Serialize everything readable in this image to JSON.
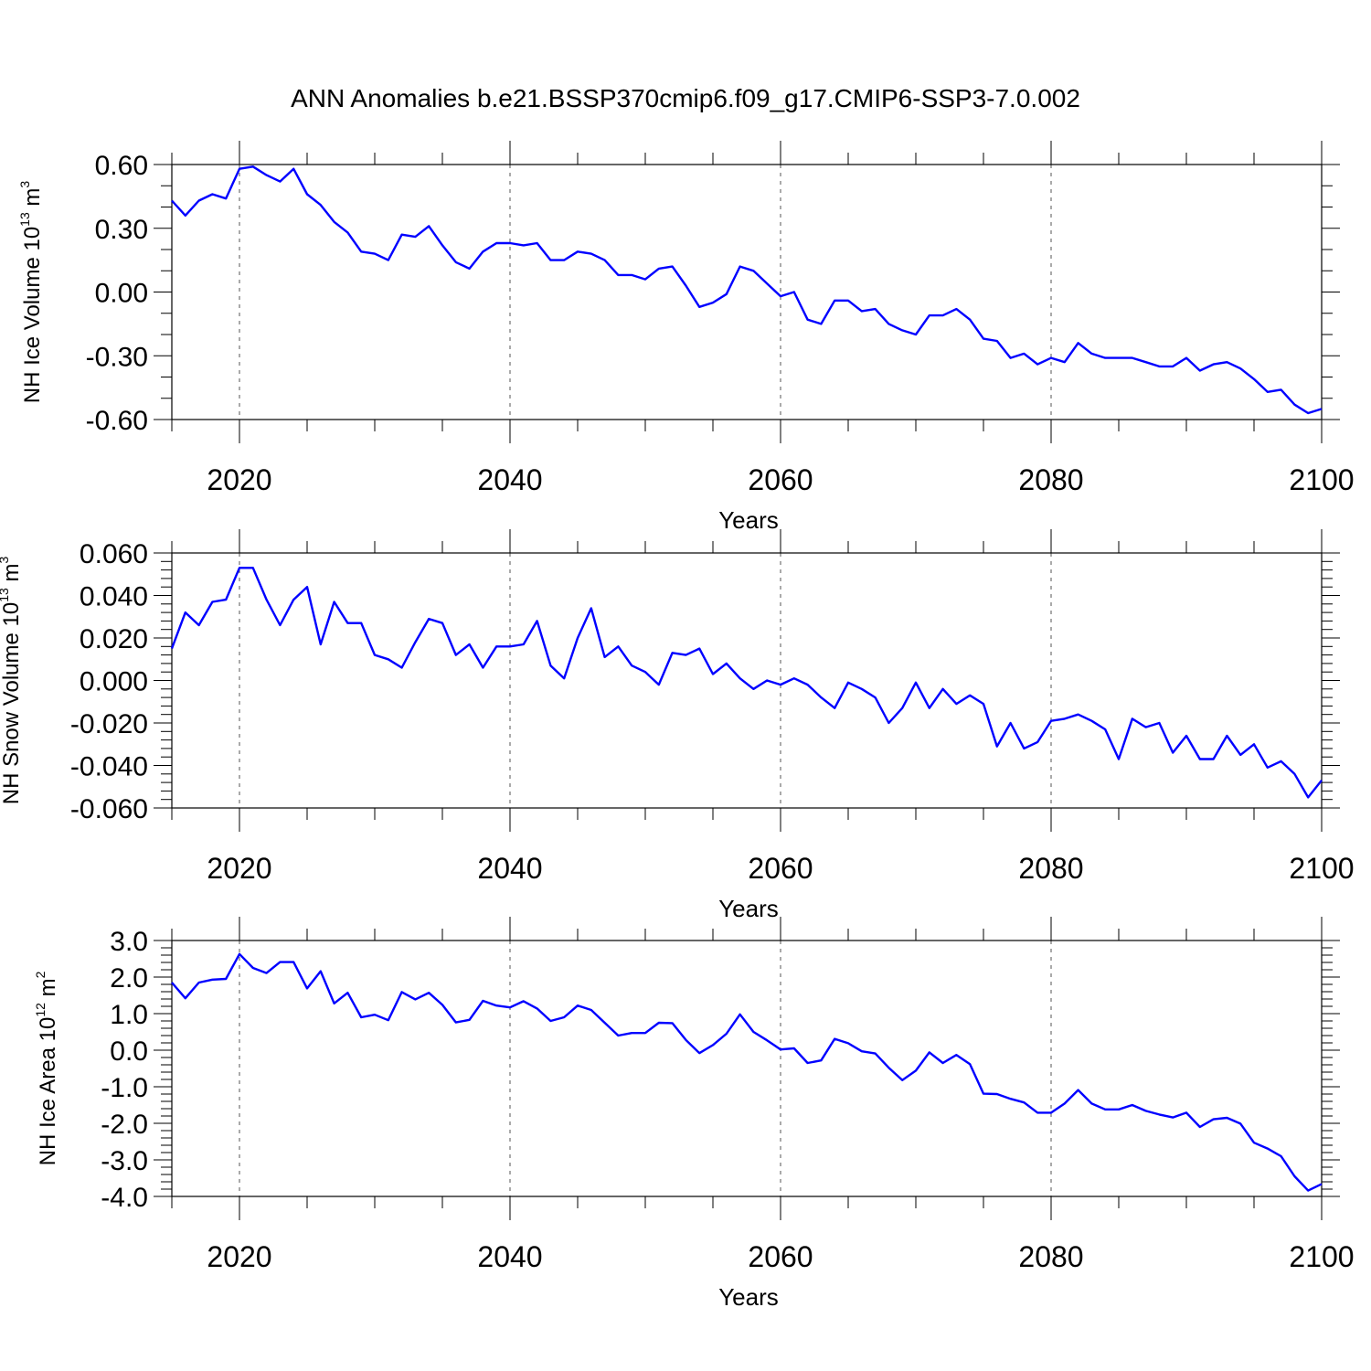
{
  "title": "ANN Anomalies b.e21.BSSP370cmip6.f09_g17.CMIP6-SSP3-7.0.002",
  "chart_data": [
    {
      "type": "line",
      "xlabel": "Years",
      "ylabel": "NH Ice Volume 10",
      "ylabel_exponent": "13",
      "ylabel_unit": " m",
      "ylabel_unit_exponent": "3",
      "xlim": [
        2015,
        2100
      ],
      "ylim": [
        -0.6,
        0.6
      ],
      "x_ticks": [
        "2020",
        "2040",
        "2060",
        "2080",
        "2100"
      ],
      "y_ticks": [
        "0.60",
        "0.30",
        "0.00",
        "-0.30",
        "-0.60"
      ],
      "grid": "vertical dashed at major x ticks",
      "line_color": "#0000ff",
      "x": [
        2015,
        2016,
        2017,
        2018,
        2019,
        2020,
        2021,
        2022,
        2023,
        2024,
        2025,
        2026,
        2027,
        2028,
        2029,
        2030,
        2031,
        2032,
        2033,
        2034,
        2035,
        2036,
        2037,
        2038,
        2039,
        2040,
        2041,
        2042,
        2043,
        2044,
        2045,
        2046,
        2047,
        2048,
        2049,
        2050,
        2051,
        2052,
        2053,
        2054,
        2055,
        2056,
        2057,
        2058,
        2059,
        2060,
        2061,
        2062,
        2063,
        2064,
        2065,
        2066,
        2067,
        2068,
        2069,
        2070,
        2071,
        2072,
        2073,
        2074,
        2075,
        2076,
        2077,
        2078,
        2079,
        2080,
        2081,
        2082,
        2083,
        2084,
        2085,
        2086,
        2087,
        2088,
        2089,
        2090,
        2091,
        2092,
        2093,
        2094,
        2095,
        2096,
        2097,
        2098,
        2099,
        2100
      ],
      "values": [
        0.43,
        0.36,
        0.43,
        0.46,
        0.44,
        0.58,
        0.59,
        0.55,
        0.52,
        0.58,
        0.46,
        0.41,
        0.33,
        0.28,
        0.19,
        0.18,
        0.15,
        0.27,
        0.26,
        0.31,
        0.22,
        0.14,
        0.11,
        0.19,
        0.23,
        0.23,
        0.22,
        0.23,
        0.15,
        0.15,
        0.19,
        0.18,
        0.15,
        0.08,
        0.08,
        0.06,
        0.11,
        0.12,
        0.03,
        -0.07,
        -0.05,
        -0.01,
        0.12,
        0.1,
        0.04,
        -0.02,
        0.0,
        -0.13,
        -0.15,
        -0.04,
        -0.04,
        -0.09,
        -0.08,
        -0.15,
        -0.18,
        -0.2,
        -0.11,
        -0.11,
        -0.08,
        -0.13,
        -0.22,
        -0.23,
        -0.31,
        -0.29,
        -0.34,
        -0.31,
        -0.33,
        -0.24,
        -0.29,
        -0.31,
        -0.31,
        -0.31,
        -0.33,
        -0.35,
        -0.35,
        -0.31,
        -0.37,
        -0.34,
        -0.33,
        -0.36,
        -0.41,
        -0.47,
        -0.46,
        -0.53,
        -0.57,
        -0.55
      ]
    },
    {
      "type": "line",
      "xlabel": "Years",
      "ylabel": "NH Snow Volume 10",
      "ylabel_exponent": "13",
      "ylabel_unit": " m",
      "ylabel_unit_exponent": "3",
      "xlim": [
        2015,
        2100
      ],
      "ylim": [
        -0.06,
        0.06
      ],
      "x_ticks": [
        "2020",
        "2040",
        "2060",
        "2080",
        "2100"
      ],
      "y_ticks": [
        "0.060",
        "0.040",
        "0.020",
        "0.000",
        "-0.020",
        "-0.040",
        "-0.060"
      ],
      "grid": "vertical dashed at major x ticks",
      "line_color": "#0000ff",
      "x": [
        2015,
        2016,
        2017,
        2018,
        2019,
        2020,
        2021,
        2022,
        2023,
        2024,
        2025,
        2026,
        2027,
        2028,
        2029,
        2030,
        2031,
        2032,
        2033,
        2034,
        2035,
        2036,
        2037,
        2038,
        2039,
        2040,
        2041,
        2042,
        2043,
        2044,
        2045,
        2046,
        2047,
        2048,
        2049,
        2050,
        2051,
        2052,
        2053,
        2054,
        2055,
        2056,
        2057,
        2058,
        2059,
        2060,
        2061,
        2062,
        2063,
        2064,
        2065,
        2066,
        2067,
        2068,
        2069,
        2070,
        2071,
        2072,
        2073,
        2074,
        2075,
        2076,
        2077,
        2078,
        2079,
        2080,
        2081,
        2082,
        2083,
        2084,
        2085,
        2086,
        2087,
        2088,
        2089,
        2090,
        2091,
        2092,
        2093,
        2094,
        2095,
        2096,
        2097,
        2098,
        2099,
        2100
      ],
      "values": [
        0.015,
        0.032,
        0.026,
        0.037,
        0.038,
        0.053,
        0.053,
        0.038,
        0.026,
        0.038,
        0.044,
        0.017,
        0.037,
        0.027,
        0.027,
        0.012,
        0.01,
        0.006,
        0.018,
        0.029,
        0.027,
        0.012,
        0.017,
        0.006,
        0.016,
        0.016,
        0.017,
        0.028,
        0.007,
        0.001,
        0.02,
        0.034,
        0.011,
        0.016,
        0.007,
        0.004,
        -0.002,
        0.013,
        0.012,
        0.015,
        0.003,
        0.008,
        0.001,
        -0.004,
        -0.0,
        -0.002,
        0.001,
        -0.002,
        -0.008,
        -0.013,
        -0.001,
        -0.004,
        -0.008,
        -0.02,
        -0.013,
        -0.001,
        -0.013,
        -0.004,
        -0.011,
        -0.007,
        -0.011,
        -0.031,
        -0.02,
        -0.032,
        -0.029,
        -0.019,
        -0.018,
        -0.016,
        -0.019,
        -0.023,
        -0.037,
        -0.018,
        -0.022,
        -0.02,
        -0.034,
        -0.026,
        -0.037,
        -0.037,
        -0.026,
        -0.035,
        -0.03,
        -0.041,
        -0.038,
        -0.044,
        -0.055,
        -0.047
      ]
    },
    {
      "type": "line",
      "xlabel": "Years",
      "ylabel": "NH Ice Area 10",
      "ylabel_exponent": "12",
      "ylabel_unit": " m",
      "ylabel_unit_exponent": "2",
      "xlim": [
        2015,
        2100
      ],
      "ylim": [
        -4.0,
        3.0
      ],
      "x_ticks": [
        "2020",
        "2040",
        "2060",
        "2080",
        "2100"
      ],
      "y_ticks": [
        "3.0",
        "2.0",
        "1.0",
        "0.0",
        "-1.0",
        "-2.0",
        "-3.0",
        "-4.0"
      ],
      "grid": "vertical dashed at major x ticks",
      "line_color": "#0000ff",
      "x": [
        2015,
        2016,
        2017,
        2018,
        2019,
        2020,
        2021,
        2022,
        2023,
        2024,
        2025,
        2026,
        2027,
        2028,
        2029,
        2030,
        2031,
        2032,
        2033,
        2034,
        2035,
        2036,
        2037,
        2038,
        2039,
        2040,
        2041,
        2042,
        2043,
        2044,
        2045,
        2046,
        2047,
        2048,
        2049,
        2050,
        2051,
        2052,
        2053,
        2054,
        2055,
        2056,
        2057,
        2058,
        2059,
        2060,
        2061,
        2062,
        2063,
        2064,
        2065,
        2066,
        2067,
        2068,
        2069,
        2070,
        2071,
        2072,
        2073,
        2074,
        2075,
        2076,
        2077,
        2078,
        2079,
        2080,
        2081,
        2082,
        2083,
        2084,
        2085,
        2086,
        2087,
        2088,
        2089,
        2090,
        2091,
        2092,
        2093,
        2094,
        2095,
        2096,
        2097,
        2098,
        2099,
        2100
      ],
      "values": [
        1.85,
        1.42,
        1.85,
        1.93,
        1.95,
        2.63,
        2.25,
        2.11,
        2.41,
        2.41,
        1.69,
        2.16,
        1.28,
        1.57,
        0.9,
        0.97,
        0.82,
        1.59,
        1.39,
        1.57,
        1.24,
        0.76,
        0.83,
        1.35,
        1.22,
        1.17,
        1.34,
        1.14,
        0.8,
        0.9,
        1.22,
        1.1,
        0.75,
        0.4,
        0.47,
        0.47,
        0.75,
        0.74,
        0.28,
        -0.08,
        0.14,
        0.45,
        0.98,
        0.5,
        0.27,
        0.02,
        0.05,
        -0.35,
        -0.28,
        0.31,
        0.19,
        -0.03,
        -0.09,
        -0.48,
        -0.82,
        -0.56,
        -0.06,
        -0.35,
        -0.13,
        -0.38,
        -1.19,
        -1.2,
        -1.33,
        -1.43,
        -1.71,
        -1.71,
        -1.46,
        -1.09,
        -1.46,
        -1.62,
        -1.62,
        -1.5,
        -1.66,
        -1.76,
        -1.84,
        -1.71,
        -2.1,
        -1.89,
        -1.85,
        -2.01,
        -2.53,
        -2.69,
        -2.9,
        -3.45,
        -3.84,
        -3.66
      ]
    }
  ]
}
